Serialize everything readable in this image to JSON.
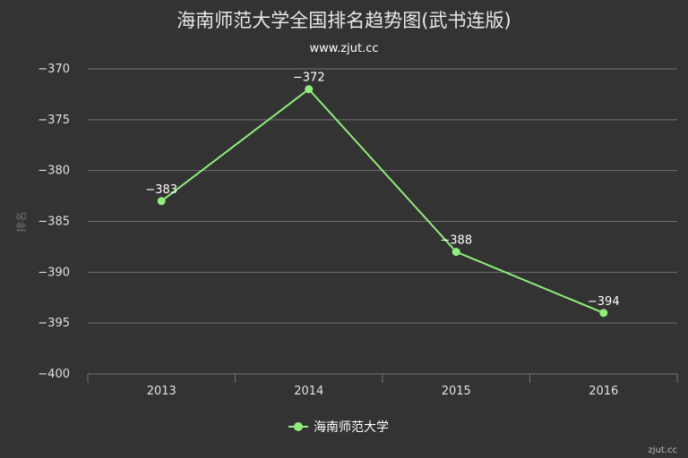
{
  "chart_data": {
    "type": "line",
    "title": "海南师范大学全国排名趋势图(武书连版)",
    "subtitle": "www.zjut.cc",
    "xlabel": "",
    "ylabel": "排名",
    "categories": [
      "2013",
      "2014",
      "2015",
      "2016"
    ],
    "series": [
      {
        "name": "海南师范大学",
        "values": [
          -383,
          -372,
          -388,
          -394
        ]
      }
    ],
    "ylim": [
      -400,
      -370
    ],
    "yticks": [
      -370,
      -375,
      -380,
      -385,
      -390,
      -395,
      -400
    ],
    "grid": true,
    "legend": "bottom-center",
    "colors": {
      "series": "#90ed7d",
      "background": "#333333",
      "grid": "#707070"
    }
  },
  "credit": "zjut.cc"
}
